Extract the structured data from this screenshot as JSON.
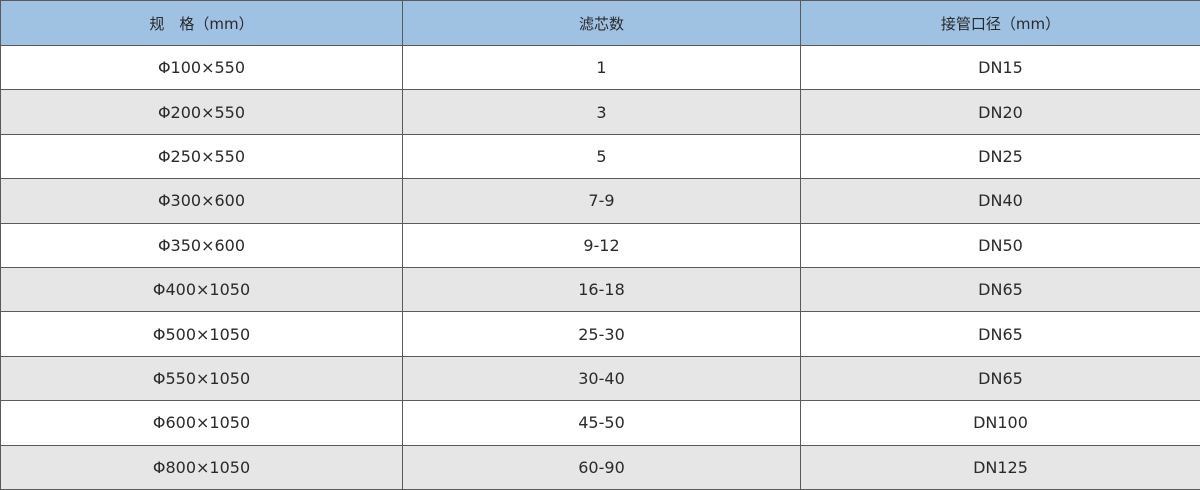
{
  "table": {
    "headers": [
      "规　格（mm）",
      "滤芯数",
      "接管口径（mm）"
    ],
    "rows": [
      [
        "Φ100×550",
        "1",
        "DN15"
      ],
      [
        "Φ200×550",
        "3",
        "DN20"
      ],
      [
        "Φ250×550",
        "5",
        "DN25"
      ],
      [
        "Φ300×600",
        "7-9",
        "DN40"
      ],
      [
        "Φ350×600",
        "9-12",
        "DN50"
      ],
      [
        "Φ400×1050",
        "16-18",
        "DN65"
      ],
      [
        "Φ500×1050",
        "25-30",
        "DN65"
      ],
      [
        "Φ550×1050",
        "30-40",
        "DN65"
      ],
      [
        "Φ600×1050",
        "45-50",
        "DN100"
      ],
      [
        "Φ800×1050",
        "60-90",
        "DN125"
      ]
    ]
  },
  "colors": {
    "header_bg": "#9fc1e2",
    "alt_row_bg": "#e6e6e6",
    "border": "#5a5a5a"
  }
}
